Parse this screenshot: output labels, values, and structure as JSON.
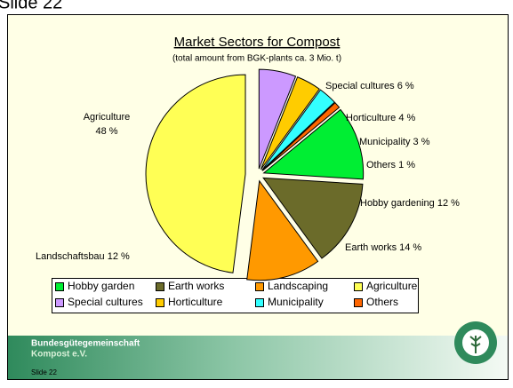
{
  "slide_heading": "Slide 22",
  "chart_data": {
    "type": "pie",
    "title": "Market Sectors for Compost",
    "subtitle": "(total amount from BGK-plants ca. 3 Mio. t)",
    "categories": [
      "Hobby garden",
      "Earth works",
      "Landscaping",
      "Agriculture",
      "Special cultures",
      "Horticulture",
      "Municipality",
      "Others"
    ],
    "slice_names": [
      "Hobby gardening",
      "Earth works",
      "Landschaftsbau",
      "Agriculture",
      "Special cultures",
      "Horticulture",
      "Municipality",
      "Others"
    ],
    "values": [
      12,
      14,
      12,
      48,
      6,
      4,
      3,
      1
    ],
    "value_labels": [
      "12 %",
      "14 %",
      "12 %",
      "48 %",
      "6 %",
      "4 %",
      "3 %",
      "1 %"
    ],
    "colors": [
      "#00ee33",
      "#6b6b2a",
      "#ff9900",
      "#ffff55",
      "#cc99ff",
      "#ffcc00",
      "#33ffff",
      "#ff6600"
    ],
    "legend": "bottom"
  },
  "footer": {
    "org_line1": "Bundesgütegemeinschaft",
    "org_line2": "Kompost e.V.",
    "slide": "Slide 22"
  }
}
